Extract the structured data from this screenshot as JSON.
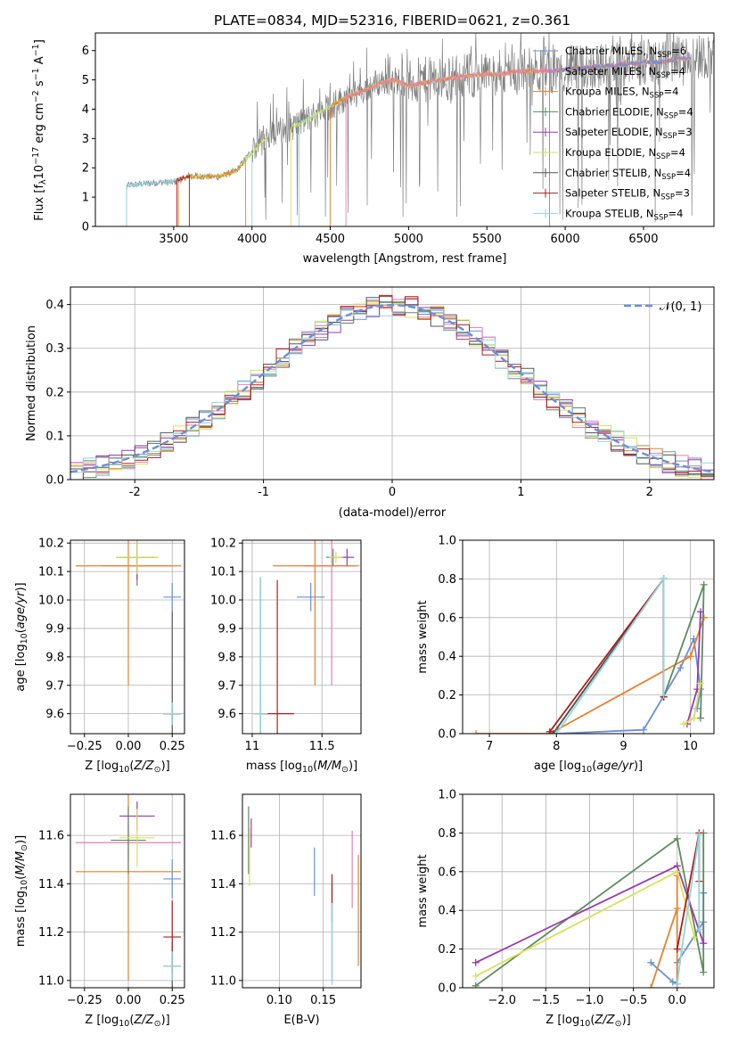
{
  "figure": {
    "title": "PLATE=0834, MJD=52316, FIBERID=0621, z=0.361"
  },
  "palette": {
    "chabrier_miles": "#6a8fd8",
    "salpeter_miles": "#e67fb3",
    "kroupa_miles": "#e87f2c",
    "chabrier_elodie": "#5f8a5f",
    "salpeter_elodie": "#9a3ab0",
    "kroupa_elodie": "#d6e25a",
    "chabrier_stelib": "#555555",
    "salpeter_stelib": "#b01c1c",
    "kroupa_stelib": "#8fd6dc",
    "observed": "#808080"
  },
  "legend_models": [
    {
      "pre": "Chabrier MILES, N",
      "sub": "SSP",
      "post": "=6",
      "color": "#6a8fd8"
    },
    {
      "pre": "Salpeter MILES, N",
      "sub": "SSP",
      "post": "=4",
      "color": "#e67fb3"
    },
    {
      "pre": "Kroupa MILES, N",
      "sub": "SSP",
      "post": "=4",
      "color": "#e87f2c"
    },
    {
      "pre": "Chabrier ELODIE, N",
      "sub": "SSP",
      "post": "=4",
      "color": "#5f8a5f"
    },
    {
      "pre": "Salpeter ELODIE, N",
      "sub": "SSP",
      "post": "=3",
      "color": "#9a3ab0"
    },
    {
      "pre": "Kroupa ELODIE, N",
      "sub": "SSP",
      "post": "=4",
      "color": "#d6e25a"
    },
    {
      "pre": "Chabrier STELIB, N",
      "sub": "SSP",
      "post": "=4",
      "color": "#555555"
    },
    {
      "pre": "Salpeter STELIB, N",
      "sub": "SSP",
      "post": "=3",
      "color": "#b01c1c"
    },
    {
      "pre": "Kroupa STELIB, N",
      "sub": "SSP",
      "post": "=4",
      "color": "#8fd6dc"
    }
  ],
  "chart_data": [
    {
      "id": "spectrum",
      "type": "line",
      "xlabel": "wavelength [Angstrom, rest frame]",
      "ylabel": "Flux [f_λ 10^-17 erg cm^-2 s^-1 A^-1]",
      "xlim": [
        3000,
        6950
      ],
      "ylim": [
        0,
        6.6
      ],
      "xticks": [
        3500,
        4000,
        4500,
        5000,
        5500,
        6000,
        6500
      ],
      "yticks": [
        0,
        1,
        2,
        3,
        4,
        5,
        6
      ],
      "observed_continuum": {
        "x": [
          3200,
          3300,
          3400,
          3500,
          3550,
          3600,
          3700,
          3800,
          3900,
          4000,
          4100,
          4200,
          4300,
          4400,
          4500,
          4600,
          4700,
          4800,
          4900,
          5000,
          5100,
          5200,
          5300,
          5400,
          5500,
          5600,
          5700,
          5800,
          5900,
          6000,
          6100,
          6200,
          6300,
          6400,
          6500,
          6600,
          6700,
          6800,
          6950
        ],
        "y": [
          1.4,
          1.45,
          1.5,
          1.5,
          1.6,
          1.75,
          1.7,
          1.7,
          1.9,
          2.6,
          3.1,
          3.3,
          3.5,
          3.8,
          4.1,
          4.4,
          4.6,
          4.9,
          5.0,
          4.9,
          5.0,
          5.0,
          5.1,
          5.15,
          5.2,
          5.25,
          5.3,
          5.3,
          5.3,
          5.4,
          5.4,
          5.45,
          5.5,
          5.6,
          5.6,
          5.6,
          5.7,
          5.8,
          5.8
        ]
      },
      "model_continuum": {
        "x": [
          3200,
          3300,
          3400,
          3500,
          3600,
          3700,
          3800,
          3900,
          4000,
          4100,
          4200,
          4300,
          4400,
          4500,
          4600,
          4700,
          4800,
          4900,
          5000,
          5100,
          5200,
          5300,
          5400,
          5500,
          5600,
          5700,
          5800,
          5900,
          6000,
          6100,
          6200,
          6300,
          6400,
          6500,
          6600,
          6700,
          6800
        ],
        "y": [
          1.4,
          1.45,
          1.5,
          1.55,
          1.7,
          1.7,
          1.72,
          1.9,
          2.5,
          3.1,
          3.3,
          3.5,
          3.8,
          4.1,
          4.4,
          4.6,
          4.85,
          5.0,
          4.8,
          4.9,
          5.0,
          5.1,
          5.15,
          5.2,
          5.2,
          5.3,
          5.3,
          5.3,
          5.35,
          5.4,
          5.45,
          5.5,
          5.55,
          5.6,
          5.6,
          5.7,
          5.75
        ]
      }
    },
    {
      "id": "residuals",
      "type": "histogram",
      "xlabel": "(data-model)/error",
      "ylabel": "Normed distribution",
      "xlim": [
        -2.5,
        2.5
      ],
      "ylim": [
        0,
        0.44
      ],
      "xticks": [
        -2,
        -1,
        0,
        1,
        2
      ],
      "yticks": [
        0.0,
        0.1,
        0.2,
        0.3,
        0.4
      ],
      "reference_legend": "𝒩(0, 1)",
      "bin_centers": [
        -2.4,
        -2.2,
        -2.0,
        -1.8,
        -1.6,
        -1.4,
        -1.2,
        -1.0,
        -0.8,
        -0.6,
        -0.4,
        -0.2,
        0.0,
        0.2,
        0.4,
        0.6,
        0.8,
        1.0,
        1.2,
        1.4,
        1.6,
        1.8,
        2.0,
        2.2,
        2.4
      ],
      "hist_values": [
        0.025,
        0.04,
        0.07,
        0.09,
        0.13,
        0.17,
        0.21,
        0.25,
        0.29,
        0.33,
        0.37,
        0.39,
        0.38,
        0.37,
        0.34,
        0.32,
        0.28,
        0.25,
        0.21,
        0.17,
        0.13,
        0.1,
        0.07,
        0.05,
        0.03
      ]
    },
    {
      "id": "age_vs_Z",
      "type": "errorbar",
      "xlabel": "Z [log10(Z/Z⊙)]",
      "ylabel": "age  [log10(age/yr)]",
      "xlim": [
        -0.33,
        0.32
      ],
      "ylim": [
        9.53,
        10.21
      ],
      "xticks": [
        -0.25,
        0.0,
        0.25
      ],
      "xticklabels": [
        "−0.25",
        "0.00",
        "0.25"
      ],
      "yticks": [
        9.6,
        9.7,
        9.8,
        9.9,
        10.0,
        10.1,
        10.2
      ],
      "points": [
        {
          "m": "chabrier_miles",
          "x": 0.25,
          "y": 10.01,
          "xerr": 0.05,
          "yerr": 0.05
        },
        {
          "m": "salpeter_miles",
          "x": 0.05,
          "y": 10.12,
          "xerr": 0.2,
          "yerr": 0.04
        },
        {
          "m": "kroupa_miles",
          "x": 0.0,
          "y": 10.12,
          "xerr": 0.3,
          "yerr": 0.42
        },
        {
          "m": "chabrier_elodie",
          "x": 0.05,
          "y": 10.15,
          "xerr": 0.12,
          "yerr": 0.1
        },
        {
          "m": "salpeter_elodie",
          "x": 0.05,
          "y": 10.15,
          "xerr": 0.1,
          "yerr": 0.08
        },
        {
          "m": "kroupa_elodie",
          "x": 0.05,
          "y": 10.15,
          "xerr": 0.12,
          "yerr": 0.06
        },
        {
          "m": "chabrier_stelib",
          "x": 0.25,
          "y": 9.6,
          "xerr": 0.05,
          "yerr": 0.36
        },
        {
          "m": "salpeter_stelib",
          "x": 0.25,
          "y": 9.6,
          "xerr": 0.05,
          "yerr": 0.02
        },
        {
          "m": "kroupa_stelib",
          "x": 0.25,
          "y": 9.6,
          "xerr": 0.05,
          "yerr": 0.04
        }
      ]
    },
    {
      "id": "age_vs_mass",
      "type": "errorbar",
      "xlabel": "mass [log10(M/M⊙)]",
      "ylabel": "",
      "xlim": [
        10.93,
        11.78
      ],
      "ylim": [
        9.53,
        10.21
      ],
      "xticks": [
        11.0,
        11.5
      ],
      "yticks": [
        9.6,
        9.7,
        9.8,
        9.9,
        10.0,
        10.1,
        10.2
      ],
      "points": [
        {
          "m": "chabrier_miles",
          "x": 11.42,
          "y": 10.01,
          "xerr": 0.1,
          "yerr": 0.05
        },
        {
          "m": "salpeter_miles",
          "x": 11.57,
          "y": 10.12,
          "xerr": 0.2,
          "yerr": 0.42
        },
        {
          "m": "kroupa_miles",
          "x": 11.45,
          "y": 10.12,
          "xerr": 0.3,
          "yerr": 0.42
        },
        {
          "m": "chabrier_elodie",
          "x": 11.58,
          "y": 10.15,
          "xerr": 0.05,
          "yerr": 0.03
        },
        {
          "m": "salpeter_elodie",
          "x": 11.68,
          "y": 10.15,
          "xerr": 0.05,
          "yerr": 0.03
        },
        {
          "m": "kroupa_elodie",
          "x": 11.6,
          "y": 10.15,
          "xerr": 0.05,
          "yerr": 0.02
        },
        {
          "m": "chabrier_stelib",
          "x": 11.06,
          "y": 9.6,
          "xerr": 0.05,
          "yerr": 0.48
        },
        {
          "m": "salpeter_stelib",
          "x": 11.18,
          "y": 9.6,
          "xerr": 0.12,
          "yerr": 0.47
        },
        {
          "m": "kroupa_stelib",
          "x": 11.06,
          "y": 9.6,
          "xerr": 0.05,
          "yerr": 0.48
        }
      ]
    },
    {
      "id": "weight_vs_age",
      "type": "line",
      "xlabel": "age  [log10(age/yr)]",
      "ylabel": "mass weight",
      "xlim": [
        6.6,
        10.35
      ],
      "ylim": [
        0,
        1.0
      ],
      "xticks": [
        7,
        8,
        9,
        10
      ],
      "yticks": [
        0.0,
        0.2,
        0.4,
        0.6,
        0.8,
        1.0
      ],
      "series": [
        {
          "m": "chabrier_miles",
          "x": [
            8.0,
            9.3,
            9.85,
            10.05,
            10.15,
            10.1
          ],
          "y": [
            0.0,
            0.02,
            0.34,
            0.49,
            0.23,
            0.13
          ]
        },
        {
          "m": "kroupa_miles",
          "x": [
            6.8,
            7.9,
            10.0,
            10.2
          ],
          "y": [
            0.0,
            0.0,
            0.4,
            0.6
          ]
        },
        {
          "m": "chabrier_elodie",
          "x": [
            7.95,
            9.6,
            9.6,
            10.2,
            10.15
          ],
          "y": [
            0.0,
            0.8,
            0.19,
            0.77,
            0.08
          ]
        },
        {
          "m": "salpeter_elodie",
          "x": [
            9.95,
            10.1,
            10.15
          ],
          "y": [
            0.05,
            0.23,
            0.63
          ]
        },
        {
          "m": "kroupa_elodie",
          "x": [
            9.9,
            10.05,
            10.15
          ],
          "y": [
            0.05,
            0.08,
            0.26
          ]
        },
        {
          "m": "chabrier_stelib",
          "x": [
            7.95,
            9.6,
            9.6
          ],
          "y": [
            0.0,
            0.8,
            0.19
          ]
        },
        {
          "m": "salpeter_stelib",
          "x": [
            7.9,
            9.6,
            9.6
          ],
          "y": [
            0.01,
            0.8,
            0.19
          ]
        },
        {
          "m": "kroupa_stelib",
          "x": [
            8.0,
            9.6,
            9.6
          ],
          "y": [
            0.0,
            0.8,
            0.2
          ]
        }
      ]
    },
    {
      "id": "mass_vs_Z",
      "type": "errorbar",
      "xlabel": "Z [log10(Z/Z⊙)]",
      "ylabel": "mass [log10(M/M⊙)]",
      "xlim": [
        -0.33,
        0.32
      ],
      "ylim": [
        10.97,
        11.77
      ],
      "xticks": [
        -0.25,
        0.0,
        0.25
      ],
      "xticklabels": [
        "−0.25",
        "0.00",
        "0.25"
      ],
      "yticks": [
        11.0,
        11.2,
        11.4,
        11.6
      ],
      "points": [
        {
          "m": "chabrier_miles",
          "x": 0.25,
          "y": 11.42,
          "xerr": 0.05,
          "yerr": 0.08
        },
        {
          "m": "salpeter_miles",
          "x": 0.0,
          "y": 11.57,
          "xerr": 0.3,
          "yerr": 0.08
        },
        {
          "m": "kroupa_miles",
          "x": 0.0,
          "y": 11.45,
          "xerr": 0.3,
          "yerr": 0.45
        },
        {
          "m": "chabrier_elodie",
          "x": 0.0,
          "y": 11.58,
          "xerr": 0.1,
          "yerr": 0.14
        },
        {
          "m": "salpeter_elodie",
          "x": 0.05,
          "y": 11.68,
          "xerr": 0.1,
          "yerr": 0.06
        },
        {
          "m": "kroupa_elodie",
          "x": 0.05,
          "y": 11.59,
          "xerr": 0.1,
          "yerr": 0.12
        },
        {
          "m": "chabrier_stelib",
          "x": 0.25,
          "y": 11.06,
          "xerr": 0.05,
          "yerr": 0.1
        },
        {
          "m": "salpeter_stelib",
          "x": 0.25,
          "y": 11.18,
          "xerr": 0.05,
          "yerr": 0.15
        },
        {
          "m": "kroupa_stelib",
          "x": 0.25,
          "y": 11.06,
          "xerr": 0.05,
          "yerr": 0.06
        }
      ]
    },
    {
      "id": "mass_vs_ebv",
      "type": "errorbar",
      "xlabel": "E(B-V)",
      "ylabel": "",
      "xlim": [
        0.058,
        0.193
      ],
      "ylim": [
        10.97,
        11.77
      ],
      "xticks": [
        0.1,
        0.15
      ],
      "xticklabels": [
        "0.10",
        "0.15"
      ],
      "yticks": [
        11.0,
        11.2,
        11.4,
        11.6
      ],
      "points": [
        {
          "m": "chabrier_miles",
          "x": 0.14,
          "y": 11.45,
          "xerr": 0.0,
          "yerr": 0.1
        },
        {
          "m": "salpeter_miles",
          "x": 0.183,
          "y": 11.46,
          "xerr": 0.0,
          "yerr": 0.16
        },
        {
          "m": "kroupa_miles",
          "x": 0.19,
          "y": 11.29,
          "xerr": 0.0,
          "yerr": 0.23
        },
        {
          "m": "chabrier_elodie",
          "x": 0.065,
          "y": 11.58,
          "xerr": 0.0,
          "yerr": 0.14
        },
        {
          "m": "salpeter_elodie",
          "x": 0.068,
          "y": 11.61,
          "xerr": 0.0,
          "yerr": 0.06
        },
        {
          "m": "kroupa_elodie",
          "x": 0.066,
          "y": 11.51,
          "xerr": 0.0,
          "yerr": 0.12
        },
        {
          "m": "chabrier_stelib",
          "x": 0.16,
          "y": 11.2,
          "xerr": 0.0,
          "yerr": 0.2
        },
        {
          "m": "salpeter_stelib",
          "x": 0.16,
          "y": 11.34,
          "xerr": 0.0,
          "yerr": 0.1
        },
        {
          "m": "kroupa_stelib",
          "x": 0.16,
          "y": 11.15,
          "xerr": 0.0,
          "yerr": 0.17
        }
      ]
    },
    {
      "id": "weight_vs_Z",
      "type": "line",
      "xlabel": "Z [log10(Z/Z⊙)]",
      "ylabel": "mass weight",
      "xlim": [
        -2.45,
        0.42
      ],
      "ylim": [
        0,
        1.0
      ],
      "xticks": [
        -2.0,
        -1.5,
        -1.0,
        -0.5,
        0.0
      ],
      "xticklabels": [
        "−2.0",
        "−1.5",
        "−1.0",
        "−0.5",
        "0.0"
      ],
      "yticks": [
        0.0,
        0.2,
        0.4,
        0.6,
        0.8,
        1.0
      ],
      "series": [
        {
          "m": "chabrier_miles",
          "x": [
            -0.3,
            -0.05,
            0.0,
            0.0,
            0.3,
            0.3,
            0.3
          ],
          "y": [
            0.13,
            0.03,
            0.02,
            0.13,
            0.34,
            0.49,
            0.23
          ]
        },
        {
          "m": "kroupa_miles",
          "x": [
            -0.3,
            0.0,
            0.0,
            0.0
          ],
          "y": [
            0.0,
            0.41,
            0.58,
            0.0
          ]
        },
        {
          "m": "chabrier_elodie",
          "x": [
            -2.3,
            0.0,
            0.3,
            0.3
          ],
          "y": [
            0.01,
            0.77,
            0.08,
            0.8
          ]
        },
        {
          "m": "salpeter_elodie",
          "x": [
            -2.3,
            0.0,
            0.3
          ],
          "y": [
            0.13,
            0.63,
            0.23
          ]
        },
        {
          "m": "kroupa_elodie",
          "x": [
            -2.3,
            0.0,
            0.2
          ],
          "y": [
            0.06,
            0.6,
            0.26
          ]
        },
        {
          "m": "salpeter_stelib",
          "x": [
            0.0,
            0.25,
            0.25
          ],
          "y": [
            0.2,
            0.8,
            0.55
          ]
        },
        {
          "m": "kroupa_stelib",
          "x": [
            0.0,
            0.05,
            0.25,
            0.25
          ],
          "y": [
            0.02,
            0.19,
            0.79,
            0.3
          ]
        }
      ]
    }
  ]
}
